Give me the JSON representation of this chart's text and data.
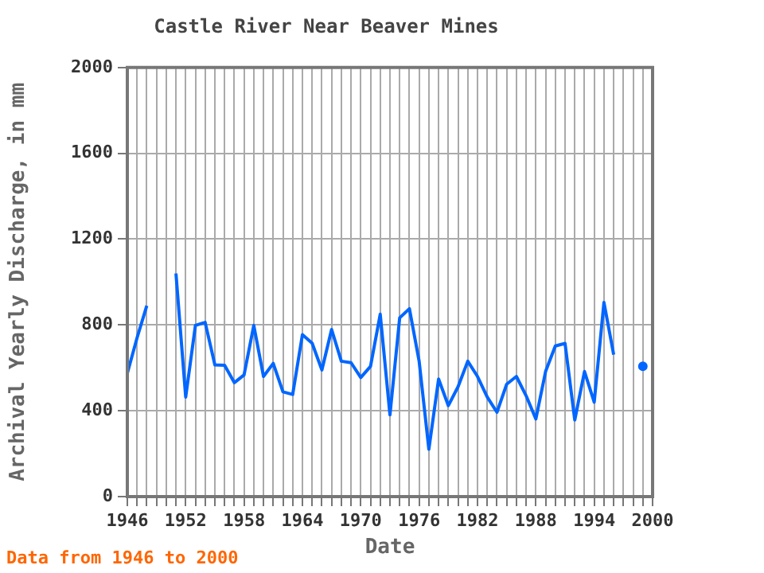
{
  "chart_data": {
    "type": "line",
    "title": "Castle River Near Beaver Mines",
    "xlabel": "Date",
    "ylabel": "Archival Yearly Discharge, in mm",
    "annotations": [
      "Data from 1946 to 2000"
    ],
    "x": [
      1946,
      1947,
      1948,
      1949,
      1950,
      1951,
      1952,
      1953,
      1954,
      1955,
      1956,
      1957,
      1958,
      1959,
      1960,
      1961,
      1962,
      1963,
      1964,
      1965,
      1966,
      1967,
      1968,
      1969,
      1970,
      1971,
      1972,
      1973,
      1974,
      1975,
      1976,
      1977,
      1978,
      1979,
      1980,
      1981,
      1982,
      1983,
      1984,
      1985,
      1986,
      1987,
      1988,
      1989,
      1990,
      1991,
      1992,
      1993,
      1994,
      1995,
      1996,
      1997,
      1998,
      1999
    ],
    "series": [
      {
        "color": "#0066ff",
        "values": [
          575,
          740,
          890,
          null,
          null,
          1040,
          464,
          798,
          812,
          614,
          612,
          531,
          567,
          798,
          560,
          621,
          488,
          476,
          755,
          715,
          590,
          779,
          631,
          624,
          555,
          607,
          850,
          381,
          833,
          876,
          631,
          221,
          548,
          424,
          512,
          631,
          560,
          464,
          393,
          524,
          560,
          470,
          362,
          583,
          702,
          714,
          357,
          583,
          440,
          905,
          662,
          null,
          null,
          607
        ]
      }
    ],
    "xlim": [
      1946,
      2000
    ],
    "xticks": [
      1946,
      {
        "value": 1947,
        "label": null
      },
      {
        "value": 1948,
        "label": null
      },
      {
        "value": 1949,
        "label": null
      },
      {
        "value": 1950,
        "label": null
      },
      {
        "value": 1951,
        "label": null
      },
      1952,
      {
        "value": 1953,
        "label": null
      },
      {
        "value": 1954,
        "label": null
      },
      {
        "value": 1955,
        "label": null
      },
      {
        "value": 1956,
        "label": null
      },
      {
        "value": 1957,
        "label": null
      },
      1958,
      {
        "value": 1959,
        "label": null
      },
      {
        "value": 1960,
        "label": null
      },
      {
        "value": 1961,
        "label": null
      },
      {
        "value": 1962,
        "label": null
      },
      {
        "value": 1963,
        "label": null
      },
      1964,
      {
        "value": 1965,
        "label": null
      },
      {
        "value": 1966,
        "label": null
      },
      {
        "value": 1967,
        "label": null
      },
      {
        "value": 1968,
        "label": null
      },
      {
        "value": 1969,
        "label": null
      },
      1970,
      {
        "value": 1971,
        "label": null
      },
      {
        "value": 1972,
        "label": null
      },
      {
        "value": 1973,
        "label": null
      },
      {
        "value": 1974,
        "label": null
      },
      {
        "value": 1975,
        "label": null
      },
      1976,
      {
        "value": 1977,
        "label": null
      },
      {
        "value": 1978,
        "label": null
      },
      {
        "value": 1979,
        "label": null
      },
      {
        "value": 1980,
        "label": null
      },
      {
        "value": 1981,
        "label": null
      },
      1982,
      {
        "value": 1983,
        "label": null
      },
      {
        "value": 1984,
        "label": null
      },
      {
        "value": 1985,
        "label": null
      },
      {
        "value": 1986,
        "label": null
      },
      {
        "value": 1987,
        "label": null
      },
      1988,
      {
        "value": 1989,
        "label": null
      },
      {
        "value": 1990,
        "label": null
      },
      {
        "value": 1991,
        "label": null
      },
      {
        "value": 1992,
        "label": null
      },
      {
        "value": 1993,
        "label": null
      },
      1994,
      {
        "value": 1995,
        "label": null
      },
      {
        "value": 1996,
        "label": null
      },
      {
        "value": 1997,
        "label": null
      },
      {
        "value": 1998,
        "label": null
      },
      {
        "value": 1999,
        "label": null
      },
      2000
    ],
    "ylim": [
      0,
      2000
    ],
    "yticks": [
      0,
      400,
      800,
      1200,
      1600,
      2000
    ],
    "grid": true,
    "legend": false
  }
}
